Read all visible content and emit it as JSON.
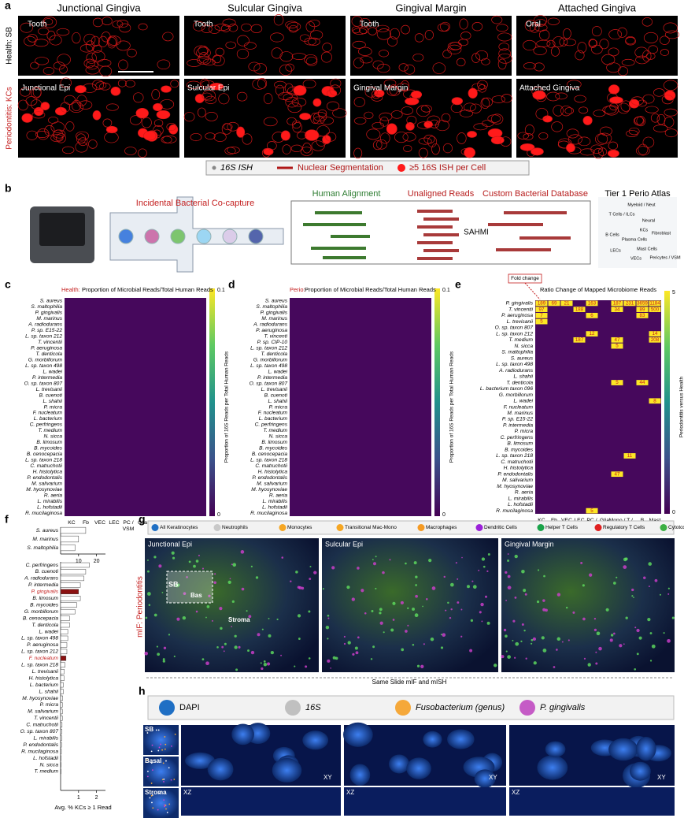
{
  "panel_letters": [
    "a",
    "b",
    "c",
    "d",
    "e",
    "f",
    "g",
    "h"
  ],
  "panel_a": {
    "columns": [
      "Junctional Gingiva",
      "Sulcular Gingiva",
      "Gingival Margin",
      "Attached Gingiva"
    ],
    "rows": [
      "Health: SB",
      "Periodontitis: KCs"
    ],
    "top_insets": [
      "Tooth",
      "Tooth",
      "Tooth",
      "Oral"
    ],
    "bottom_insets": [
      "Junctional Epi",
      "Sulcular Epi",
      "Gingival Margin",
      "Attached Gingiva"
    ],
    "legend": [
      "16S ISH",
      "Nuclear Segmentation",
      "≥5 16S ISH per Cell"
    ]
  },
  "panel_b": {
    "capture": "Incidental Bacterial Co-capture",
    "steps": [
      "Human Alignment",
      "Unaligned Reads",
      "Custom Bacterial Database"
    ],
    "tool": "SAHMI",
    "atlas": "Tier 1 Perio Atlas",
    "atlas_labels": [
      "Myeloid / Neut",
      "T Cells / ILCs",
      "Neural",
      "KCs",
      "Fibroblast",
      "B Cells",
      "Plasma Cells",
      "Mast Cells",
      "LECs",
      "VECs",
      "Pericytes / VSM"
    ]
  },
  "heatmap_columns": [
    "KC",
    "Fb",
    "VEC",
    "LEC",
    "PC / VSM",
    "Glia",
    "Mono / DC",
    "T / NK",
    "B",
    "Mast"
  ],
  "panel_c": {
    "title_prefix": "Health:",
    "title": "Proportion of Microbial Reads/Total Human Reads",
    "colorbar": [
      "0.1",
      "0"
    ],
    "colorbar_label": "Proportion of 16S Reads per Total Human Reads",
    "rows": [
      "S. aureus",
      "S. maltophilia",
      "P. gingivalis",
      "M. marinus",
      "A. radiodurans",
      "P. sp. E15-22",
      "L. sp. taxon 212",
      "T. vincentii",
      "P. aeruginosa",
      "T. denticola",
      "G. morbillorum",
      "L. sp. taxon 498",
      "L. wadei",
      "P. intermedia",
      "O. sp. taxon 807",
      "L. trevisanii",
      "B. cuenoti",
      "L. shahii",
      "P. micra",
      "F. nucleatum",
      "L. bacterium",
      "C. perfringens",
      "T. medium",
      "N. sicca",
      "B. limosum",
      "B. mycoides",
      "B. cenocepacia",
      "L. sp. taxon 218",
      "C. matruchotii",
      "H. histolytica",
      "P. endodontalis",
      "M. salivarium",
      "M. hyosynoviae",
      "R. aeria",
      "L. mirabilis",
      "L. hofstadii",
      "R. mucilaginosa"
    ]
  },
  "panel_d": {
    "title_prefix": "Perio:",
    "title": "Proportion of Microbial Reads/Total Human Reads",
    "colorbar": [
      "0.1",
      "0"
    ],
    "colorbar_label": "Proportion of 16S Reads per Total Human Reads",
    "rows": [
      "S. aureus",
      "S. maltophilia",
      "P. gingivalis",
      "M. marinus",
      "A. radiodurans",
      "P. aeruginosa",
      "T. vincenti",
      "P. sp. CIP-10",
      "L. sp. taxon 212",
      "T. denticola",
      "G. morbillorum",
      "L. sp. taxon 498",
      "L. wadei",
      "P. intermedia",
      "O. sp. taxon 807",
      "L. trevisanii",
      "B. cuenoti",
      "L. shahii",
      "P. micra",
      "F. nucleatum",
      "L. bacterium",
      "C. perfringens",
      "T. medium",
      "N. sicca",
      "B. limosum",
      "B. mycoides",
      "B. cenocepacia",
      "L. sp. taxon 218",
      "C. matruchotii",
      "H. histolytica",
      "P. endodontalis",
      "M. salivarium",
      "M. hyosynoviae",
      "R. aeria",
      "L. mirabilis",
      "L. hofstadii",
      "R. mucilaginosa"
    ]
  },
  "panel_e": {
    "title": "Ratio Change of Mapped Microbiome Reads",
    "callout": "Fold change",
    "colorbar": [
      "5",
      "0"
    ],
    "colorbar_label": "Periodontitis versus Health",
    "rows": [
      "P. gingivalis",
      "T. vincentii",
      "P. aeruginosa",
      "L. trevisanii",
      "O. sp. taxon 807",
      "L. sp. taxon 212",
      "T. medium",
      "N. sicca",
      "S. maltophilia",
      "S. aureus",
      "L. sp. taxon 498",
      "A. radiodurans",
      "L. shahii",
      "T. denticola",
      "L. bacterium taxon 096",
      "G. morbillorum",
      "L. wadei",
      "F. nucleatum",
      "M. marinus",
      "P. sp. E15-22",
      "P. intermedia",
      "P. micra",
      "C. perfringens",
      "B. limosum",
      "B. mycoides",
      "L. sp. taxon 218",
      "C. matruchotii",
      "H. histolytica",
      "P. endodontalis",
      "M. salivarium",
      "M. hyosynoviae",
      "R. aeria",
      "L. mirabilis",
      "L. hofstadii",
      "R. mucilaginosa"
    ],
    "annotations": [
      {
        "row": "P. gingivalis",
        "col": "KC",
        "label": "189"
      },
      {
        "row": "P. gingivalis",
        "col": "Fb",
        "label": "69"
      },
      {
        "row": "P. gingivalis",
        "col": "VEC",
        "label": "21"
      },
      {
        "row": "P. gingivalis",
        "col": "PC / VSM",
        "label": "163"
      },
      {
        "row": "P. gingivalis",
        "col": "Mono / DC",
        "label": "187"
      },
      {
        "row": "P. gingivalis",
        "col": "T / NK",
        "label": "231"
      },
      {
        "row": "P. gingivalis",
        "col": "B",
        "label": "3659"
      },
      {
        "row": "P. gingivalis",
        "col": "Mast",
        "label": "1184"
      },
      {
        "row": "T. vincentii",
        "col": "KC",
        "label": "97"
      },
      {
        "row": "T. vincentii",
        "col": "LEC",
        "label": "188"
      },
      {
        "row": "T. vincentii",
        "col": "Mono / DC",
        "label": "34"
      },
      {
        "row": "T. vincentii",
        "col": "B",
        "label": "89"
      },
      {
        "row": "T. vincentii",
        "col": "Mast",
        "label": "500"
      },
      {
        "row": "P. aeruginosa",
        "col": "KC",
        "label": "7"
      },
      {
        "row": "P. aeruginosa",
        "col": "PC / VSM",
        "label": "6"
      },
      {
        "row": "P. aeruginosa",
        "col": "B",
        "label": "83"
      },
      {
        "row": "L. trevisanii",
        "col": "KC",
        "label": "5"
      },
      {
        "row": "L. sp. taxon 212",
        "col": "PC / VSM",
        "label": "12"
      },
      {
        "row": "L. sp. taxon 212",
        "col": "Mast",
        "label": "14"
      },
      {
        "row": "T. medium",
        "col": "LEC",
        "label": "187"
      },
      {
        "row": "T. medium",
        "col": "Mono / DC",
        "label": "47"
      },
      {
        "row": "T. medium",
        "col": "Mast",
        "label": "208"
      },
      {
        "row": "N. sicca",
        "col": "Mono / DC",
        "label": "5"
      },
      {
        "row": "T. denticola",
        "col": "Mono / DC",
        "label": "5"
      },
      {
        "row": "T. denticola",
        "col": "B",
        "label": "44"
      },
      {
        "row": "L. wadei",
        "col": "Mast",
        "label": "8"
      },
      {
        "row": "L. sp. taxon 218",
        "col": "T / NK",
        "label": "11"
      },
      {
        "row": "P. endodontalis",
        "col": "Mono / DC",
        "label": "47"
      },
      {
        "row": "R. mucilaginosa",
        "col": "PC / VSM",
        "label": "5"
      }
    ]
  },
  "chart_data": [
    {
      "type": "bar",
      "orientation": "horizontal",
      "color": "#ffffff",
      "highlight_color": "#8b1010",
      "categories": [
        "S. aureus",
        "M. marinus",
        "S. maltophilia"
      ],
      "values": [
        14,
        10,
        8
      ],
      "highlight": [],
      "xlim": [
        0,
        25
      ],
      "xticks": [
        10,
        20
      ]
    },
    {
      "type": "bar",
      "orientation": "horizontal",
      "color": "#ffffff",
      "highlight_color": "#8b1010",
      "x_label": "Avg. % KCs ≥ 1 Read",
      "categories": [
        "C. perfringens",
        "B. cuenoti",
        "A. radiodurans",
        "P. intermedia",
        "P. gingivalis",
        "B. limosum",
        "B. mycoides",
        "G. morbillorum",
        "B. cenocepacia",
        "T. denticola",
        "L. wadei",
        "L. sp. taxon 498",
        "P. aeruginosa",
        "L. sp. taxon 212",
        "F. nucleatum",
        "L. sp. taxon 218",
        "L. trevisanii",
        "H. histolytica",
        "L. bacterium",
        "L. shahii",
        "M. hyosynoviae",
        "P. micra",
        "M. salivarium",
        "T. vincentii",
        "C. matruchotii",
        "O. sp. taxon 807",
        "L. mirabilis",
        "P. endodontalis",
        "R. mucilaginosa",
        "L. hofstadii",
        "N. sicca",
        "T. medium"
      ],
      "values": [
        1.6,
        1.4,
        1.3,
        1.1,
        1.0,
        1.1,
        0.9,
        0.8,
        0.5,
        0.5,
        0.4,
        0.4,
        0.35,
        0.35,
        0.3,
        0.25,
        0.2,
        0.2,
        0.15,
        0.15,
        0.12,
        0.1,
        0.1,
        0.1,
        0.08,
        0.07,
        0.06,
        0.05,
        0.04,
        0.03,
        0.02,
        0.01
      ],
      "highlight": [
        "P. gingivalis",
        "F. nucleatum"
      ],
      "xlim": [
        0,
        2.5
      ],
      "xticks": [
        1,
        2
      ]
    }
  ],
  "panel_g": {
    "side_label": "mIF: Periodontitis",
    "legend": [
      {
        "name": "All Keratinocytes",
        "color": "#1f6fc4"
      },
      {
        "name": "Neutrophils",
        "color": "#c8c8c8"
      },
      {
        "name": "Monocytes",
        "color": "#f5a623"
      },
      {
        "name": "Transitional Mac-Mono",
        "color": "#f5a623"
      },
      {
        "name": "Macrophages",
        "color": "#f59a23"
      },
      {
        "name": "Dendritic Cells",
        "color": "#9b20d9"
      },
      {
        "name": "Helper T Cells",
        "color": "#1aa34a"
      },
      {
        "name": "Regulatory T Cells",
        "color": "#e02020"
      },
      {
        "name": "Cytotoxic T Cells",
        "color": "#3cb043"
      }
    ],
    "images": [
      "Junctional Epi",
      "Sulcular Epi",
      "Gingival Margin"
    ],
    "regions": [
      "SB",
      "Bas",
      "Stroma"
    ],
    "footer": "Same Slide mIF and mISH"
  },
  "panel_h": {
    "legend": [
      {
        "name": "DAPI",
        "color": "#1f6fc4"
      },
      {
        "name": "16S",
        "color": "#c0c0c0"
      },
      {
        "name": "Fusobacterium (genus)",
        "color": "#f5a83a"
      },
      {
        "name": "P. gingivalis",
        "color": "#c55bc6"
      }
    ],
    "insets": [
      "SB",
      "Basal",
      "Stroma"
    ],
    "views": [
      "XY",
      "XZ"
    ]
  }
}
